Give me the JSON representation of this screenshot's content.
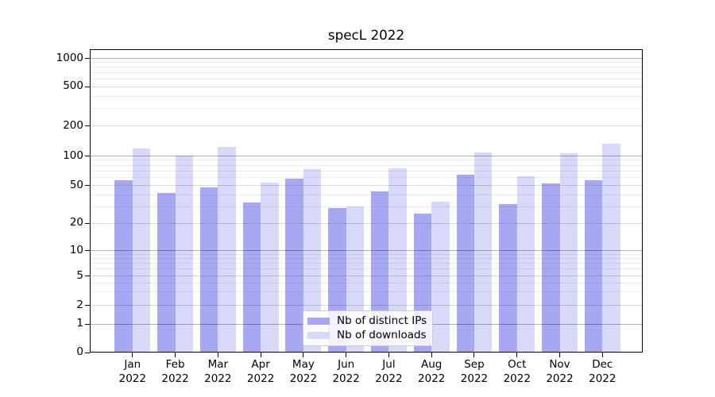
{
  "chart_data": {
    "type": "bar",
    "title": "specL 2022",
    "categories": [
      "Jan",
      "Feb",
      "Mar",
      "Apr",
      "May",
      "Jun",
      "Jul",
      "Aug",
      "Sep",
      "Oct",
      "Nov",
      "Dec"
    ],
    "year_label": "2022",
    "series": [
      {
        "name": "Nb of distinct IPs",
        "color": "#a8a8f2",
        "values": [
          57,
          42,
          48,
          33,
          59,
          29,
          43,
          25,
          65,
          32,
          53,
          57
        ]
      },
      {
        "name": "Nb of downloads",
        "color": "#d8d8f8",
        "values": [
          118,
          100,
          123,
          54,
          74,
          30,
          75,
          34,
          109,
          62,
          107,
          133
        ]
      }
    ],
    "y_axis": {
      "ticks": [
        0,
        1,
        2,
        5,
        10,
        20,
        50,
        100,
        200,
        500,
        1000
      ],
      "scale": "log-like",
      "range": [
        0,
        1250
      ]
    },
    "x_axis": {
      "tick_label_lines": 2
    },
    "grid": {
      "horizontal": true,
      "minor": true
    },
    "legend": {
      "position": "lower center"
    },
    "colors": {
      "major_grid": "rgba(0,0,0,0.30)",
      "mid_grid": "rgba(0,0,0,0.145)",
      "minor_grid": "rgba(0,0,0,0.07)",
      "axis": "#000000",
      "background": "#ffffff"
    }
  }
}
